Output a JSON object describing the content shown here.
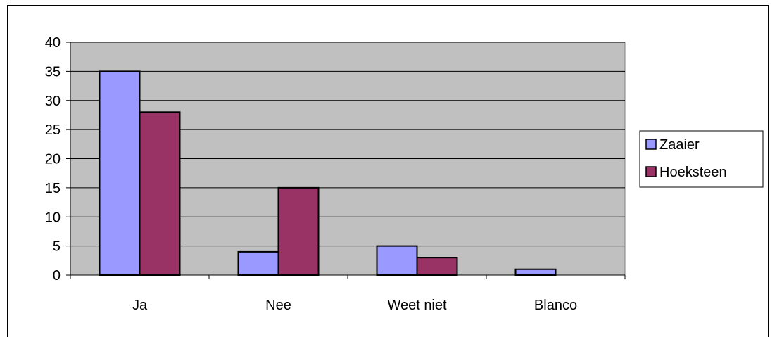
{
  "chart_data": {
    "type": "bar",
    "categories": [
      "Ja",
      "Nee",
      "Weet niet",
      "Blanco"
    ],
    "series": [
      {
        "name": "Zaaier",
        "values": [
          35,
          4,
          5,
          1
        ],
        "color": "#9999ff"
      },
      {
        "name": "Hoeksteen",
        "values": [
          28,
          15,
          3,
          0
        ],
        "color": "#993366"
      }
    ],
    "ylim": [
      0,
      40
    ],
    "yticks": [
      0,
      5,
      10,
      15,
      20,
      25,
      30,
      35,
      40
    ],
    "grid": true,
    "plot_background": "#c0c0c0",
    "legend_position": "right"
  }
}
